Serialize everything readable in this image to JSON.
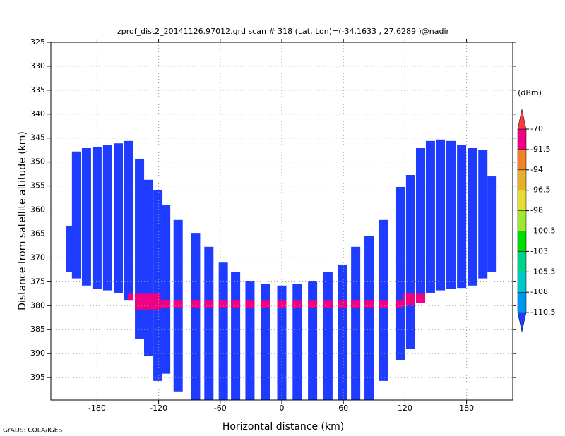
{
  "chart_data": {
    "type": "curtain",
    "title": "zprof_dist2_20141126.97012.grd  scan # 318  (Lat, Lon)=(-34.1633 , 27.6289 )@nadir",
    "x_label": "Horizontal distance (km)",
    "y_label": "Distance from satellite altitude (km)",
    "footer": "GrADS: COLA/IGES",
    "xlim": [
      -225,
      225
    ],
    "xticks": [
      -180,
      -120,
      -60,
      0,
      60,
      120,
      180
    ],
    "ylim": [
      325,
      399.7
    ],
    "yticks": [
      325,
      330,
      335,
      340,
      345,
      350,
      355,
      360,
      365,
      370,
      375,
      380,
      385,
      390,
      395
    ],
    "y_reversed": true,
    "grid": true,
    "colorbar": {
      "label": "(dBm)",
      "levels": [
        -110.5,
        -108,
        -105.5,
        -103,
        -100.5,
        -98,
        -96.5,
        -94,
        -91.5,
        -70
      ],
      "colors": [
        "#1e3cff",
        "#0096f0",
        "#00c8c8",
        "#00d28c",
        "#00dc00",
        "#a0e632",
        "#e6dc32",
        "#e6af2d",
        "#f08228",
        "#f00082",
        "#fa3c3c"
      ]
    },
    "columns": [
      {
        "x": -205.5,
        "top": 363.3,
        "bottom": 372.9
      },
      {
        "x": -200,
        "top": 347.8,
        "bottom": 374.3
      },
      {
        "x": -190.3,
        "top": 347.1,
        "bottom": 375.8
      },
      {
        "x": -180,
        "top": 346.8,
        "bottom": 376.5
      },
      {
        "x": -169.7,
        "top": 346.4,
        "bottom": 376.8
      },
      {
        "x": -159.3,
        "top": 346.1,
        "bottom": 377.3
      },
      {
        "x": -149,
        "top": 345.6,
        "bottom": 378.8
      },
      {
        "x": -138.6,
        "top": 349.3,
        "bottom": 386.9
      },
      {
        "x": -129.7,
        "top": 353.7,
        "bottom": 390.5
      },
      {
        "x": -120.7,
        "top": 355.9,
        "bottom": 395.7
      },
      {
        "x": -113.1,
        "top": 358.9,
        "bottom": 394.2
      },
      {
        "x": -101,
        "top": 362.1,
        "bottom": 397.9
      },
      {
        "x": -84,
        "top": 364.8,
        "bottom": 399.7
      },
      {
        "x": -71,
        "top": 367.7,
        "bottom": 399.7
      },
      {
        "x": -57,
        "top": 371,
        "bottom": 399.7
      },
      {
        "x": -45,
        "top": 372.9,
        "bottom": 399.7
      },
      {
        "x": -31,
        "top": 374.8,
        "bottom": 399.7
      },
      {
        "x": -16,
        "top": 375.5,
        "bottom": 399.7
      },
      {
        "x": 0,
        "top": 375.8,
        "bottom": 399.7
      },
      {
        "x": 15,
        "top": 375.5,
        "bottom": 399.7
      },
      {
        "x": 30,
        "top": 374.8,
        "bottom": 399.7
      },
      {
        "x": 45,
        "top": 372.9,
        "bottom": 399.7
      },
      {
        "x": 59,
        "top": 371.4,
        "bottom": 399.7
      },
      {
        "x": 72,
        "top": 367.7,
        "bottom": 399.7
      },
      {
        "x": 85,
        "top": 365.5,
        "bottom": 399.7
      },
      {
        "x": 99,
        "top": 362.1,
        "bottom": 395.7
      },
      {
        "x": 115.9,
        "top": 355.2,
        "bottom": 391.3
      },
      {
        "x": 125.5,
        "top": 352.7,
        "bottom": 389
      },
      {
        "x": 135.2,
        "top": 347.1,
        "bottom": 379.5
      },
      {
        "x": 144.8,
        "top": 345.6,
        "bottom": 377.3
      },
      {
        "x": 154.5,
        "top": 345.3,
        "bottom": 376.8
      },
      {
        "x": 164.8,
        "top": 345.6,
        "bottom": 376.5
      },
      {
        "x": 175.2,
        "top": 346.4,
        "bottom": 376.3
      },
      {
        "x": 185.5,
        "top": 347.1,
        "bottom": 375.8
      },
      {
        "x": 195.9,
        "top": 347.4,
        "bottom": 374.3
      },
      {
        "x": 204.8,
        "top": 353,
        "bottom": 372.9
      }
    ],
    "surface_echo": [
      {
        "x": [
          -150,
          -118
        ],
        "top": 377.5,
        "bottom": 380.8
      },
      {
        "x": [
          -118,
          118
        ],
        "top": 378.8,
        "bottom": 380.5
      },
      {
        "x": [
          118,
          150
        ],
        "top": 377.5,
        "bottom": 380
      }
    ]
  }
}
